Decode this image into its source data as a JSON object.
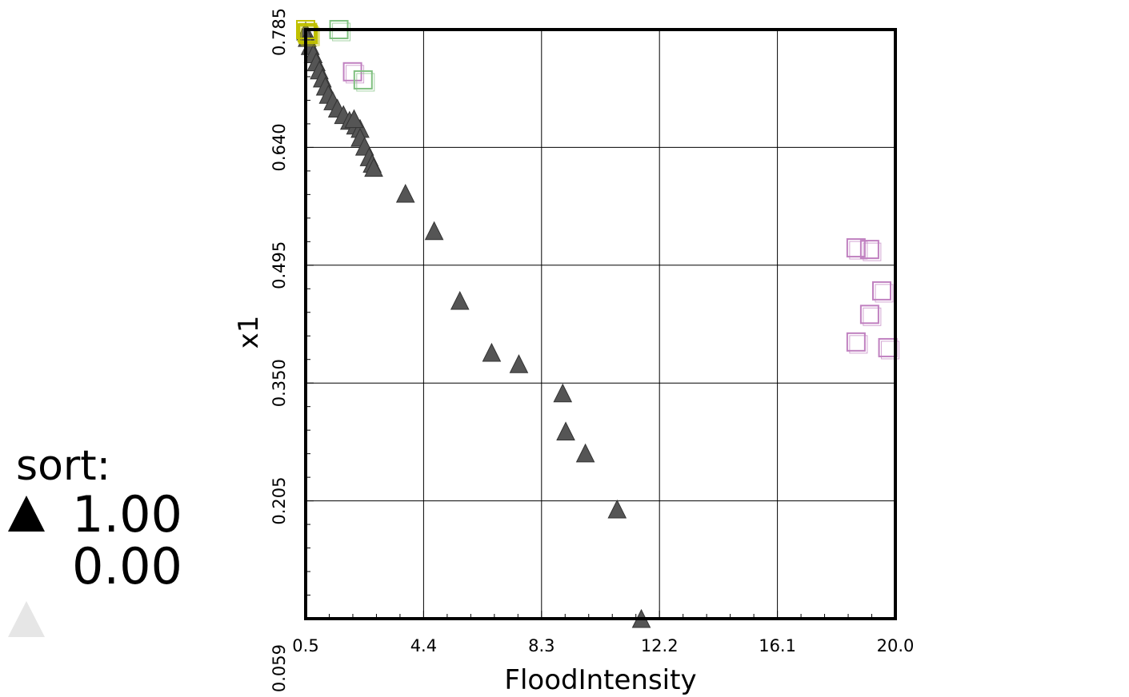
{
  "chart_data": {
    "type": "scatter",
    "xlabel": "FloodIntensity",
    "ylabel": "x1",
    "xlim": [
      0.5,
      20.0
    ],
    "ylim": [
      0.059,
      0.785
    ],
    "xticks": [
      "0.5",
      "4.4",
      "8.3",
      "12.2",
      "16.1",
      "20.0"
    ],
    "yticks": [
      "0.785",
      "0.640",
      "0.495",
      "0.350",
      "0.205",
      "0.059"
    ],
    "grid": true,
    "legend": {
      "title": "sort:",
      "entries": [
        {
          "label": "1.00",
          "marker": "triangle",
          "color": "#000000"
        },
        {
          "label": "0.00",
          "marker": "triangle",
          "color": "#e6e6e6"
        }
      ]
    },
    "series": [
      {
        "marker": "triangle",
        "color": "#555555",
        "points": [
          [
            0.5,
            0.783
          ],
          [
            0.55,
            0.775
          ],
          [
            0.65,
            0.765
          ],
          [
            0.75,
            0.755
          ],
          [
            0.85,
            0.745
          ],
          [
            0.95,
            0.735
          ],
          [
            1.05,
            0.725
          ],
          [
            1.15,
            0.715
          ],
          [
            1.25,
            0.705
          ],
          [
            1.4,
            0.697
          ],
          [
            1.55,
            0.688
          ],
          [
            1.75,
            0.68
          ],
          [
            1.95,
            0.673
          ],
          [
            2.15,
            0.667
          ],
          [
            2.3,
            0.663
          ],
          [
            2.1,
            0.675
          ],
          [
            2.3,
            0.652
          ],
          [
            2.45,
            0.641
          ],
          [
            2.6,
            0.628
          ],
          [
            2.7,
            0.62
          ],
          [
            2.75,
            0.615
          ],
          [
            3.8,
            0.583
          ],
          [
            4.75,
            0.537
          ],
          [
            5.6,
            0.451
          ],
          [
            6.65,
            0.387
          ],
          [
            7.55,
            0.373
          ],
          [
            9.0,
            0.337
          ],
          [
            9.1,
            0.29
          ],
          [
            9.75,
            0.263
          ],
          [
            10.8,
            0.194
          ],
          [
            11.6,
            0.059
          ]
        ]
      },
      {
        "marker": "square",
        "color": "#c080c0",
        "points": [
          [
            2.05,
            0.733
          ],
          [
            18.7,
            0.516
          ],
          [
            19.15,
            0.514
          ],
          [
            19.55,
            0.463
          ],
          [
            19.15,
            0.434
          ],
          [
            18.7,
            0.4
          ],
          [
            19.75,
            0.393
          ]
        ]
      },
      {
        "marker": "square",
        "color": "#80c080",
        "points": [
          [
            1.6,
            0.785
          ],
          [
            2.4,
            0.723
          ]
        ]
      },
      {
        "marker": "square",
        "color": "#c0c000",
        "points": [
          [
            0.5,
            0.785
          ],
          [
            0.55,
            0.781
          ],
          [
            0.58,
            0.779
          ]
        ]
      }
    ]
  }
}
